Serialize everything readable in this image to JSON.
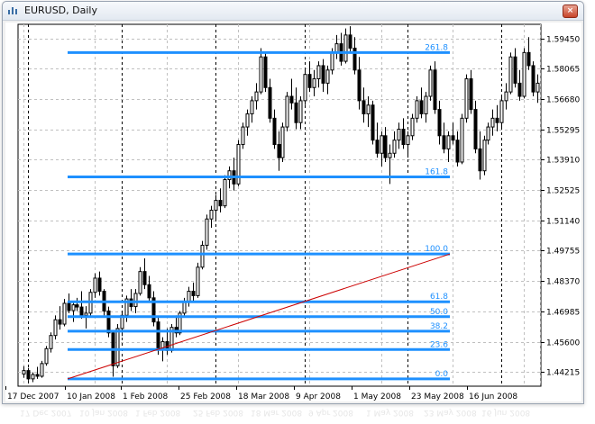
{
  "window": {
    "title": "EURUSD, Daily",
    "close_label": "×"
  },
  "chart_data": {
    "type": "candlestick",
    "symbol": "EURUSD",
    "timeframe": "Daily",
    "ylim": [
      1.43566,
      1.60088
    ],
    "y_ticks": [
      "1.59450",
      "1.58065",
      "1.56680",
      "1.55295",
      "1.53910",
      "1.52525",
      "1.51140",
      "1.49755",
      "1.48370",
      "1.46985",
      "1.45600",
      "1.44215"
    ],
    "x_ticks": [
      "17 Dec 2007",
      "10 Jan 2008",
      "1 Feb 2008",
      "25 Feb 2008",
      "18 Mar 2008",
      "9 Apr 2008",
      "1 May 2008",
      "23 May 2008",
      "16 Jun 2008"
    ],
    "grid": true,
    "period_separators": "dotted vertical black lines",
    "colors": {
      "bull": "#ffffff",
      "bear": "#000000",
      "fibo": "#1e90ff",
      "trendline": "#cc0000",
      "grid": "#c0c0c0"
    },
    "fibonacci_levels": [
      {
        "label": "0.0",
        "value": 1.439
      },
      {
        "label": "23.6",
        "value": 1.4524
      },
      {
        "label": "38.2",
        "value": 1.4608
      },
      {
        "label": "50.0",
        "value": 1.4674
      },
      {
        "label": "61.8",
        "value": 1.4742
      },
      {
        "label": "100.0",
        "value": 1.496
      },
      {
        "label": "161.8",
        "value": 1.5312
      },
      {
        "label": "261.8",
        "value": 1.588
      }
    ],
    "ohlc": [
      [
        1.4412,
        1.4448,
        1.4395,
        1.4428
      ],
      [
        1.4428,
        1.444,
        1.4382,
        1.439
      ],
      [
        1.439,
        1.442,
        1.4375,
        1.441
      ],
      [
        1.441,
        1.4445,
        1.439,
        1.4402
      ],
      [
        1.4402,
        1.4472,
        1.4395,
        1.446
      ],
      [
        1.446,
        1.454,
        1.445,
        1.4528
      ],
      [
        1.4528,
        1.4602,
        1.451,
        1.4588
      ],
      [
        1.4588,
        1.468,
        1.457,
        1.466
      ],
      [
        1.466,
        1.4722,
        1.4615,
        1.464
      ],
      [
        1.464,
        1.4755,
        1.463,
        1.4735
      ],
      [
        1.4735,
        1.478,
        1.469,
        1.4702
      ],
      [
        1.4702,
        1.4745,
        1.465,
        1.4728
      ],
      [
        1.4728,
        1.476,
        1.47,
        1.4718
      ],
      [
        1.4718,
        1.479,
        1.4665,
        1.468
      ],
      [
        1.468,
        1.4722,
        1.462,
        1.469
      ],
      [
        1.469,
        1.48,
        1.4675,
        1.4785
      ],
      [
        1.4785,
        1.4872,
        1.476,
        1.485
      ],
      [
        1.485,
        1.488,
        1.477,
        1.479
      ],
      [
        1.479,
        1.48,
        1.468,
        1.47
      ],
      [
        1.47,
        1.472,
        1.458,
        1.46
      ],
      [
        1.46,
        1.4612,
        1.44,
        1.445
      ],
      [
        1.445,
        1.464,
        1.444,
        1.462
      ],
      [
        1.462,
        1.47,
        1.4585,
        1.468
      ],
      [
        1.468,
        1.477,
        1.465,
        1.4755
      ],
      [
        1.4755,
        1.48,
        1.47,
        1.472
      ],
      [
        1.472,
        1.48,
        1.469,
        1.478
      ],
      [
        1.478,
        1.49,
        1.477,
        1.488
      ],
      [
        1.488,
        1.494,
        1.48,
        1.482
      ],
      [
        1.482,
        1.486,
        1.474,
        1.476
      ],
      [
        1.476,
        1.479,
        1.463,
        1.465
      ],
      [
        1.465,
        1.467,
        1.45,
        1.453
      ],
      [
        1.453,
        1.458,
        1.447,
        1.456
      ],
      [
        1.456,
        1.462,
        1.45,
        1.452
      ],
      [
        1.452,
        1.464,
        1.451,
        1.4625
      ],
      [
        1.4625,
        1.468,
        1.458,
        1.46
      ],
      [
        1.46,
        1.47,
        1.459,
        1.469
      ],
      [
        1.469,
        1.476,
        1.467,
        1.474
      ],
      [
        1.474,
        1.481,
        1.472,
        1.479
      ],
      [
        1.479,
        1.483,
        1.474,
        1.477
      ],
      [
        1.477,
        1.492,
        1.476,
        1.49
      ],
      [
        1.49,
        1.502,
        1.489,
        1.5
      ],
      [
        1.5,
        1.514,
        1.498,
        1.512
      ],
      [
        1.512,
        1.518,
        1.508,
        1.516
      ],
      [
        1.516,
        1.523,
        1.512,
        1.5205
      ],
      [
        1.5205,
        1.526,
        1.515,
        1.518
      ],
      [
        1.518,
        1.532,
        1.517,
        1.53
      ],
      [
        1.53,
        1.536,
        1.526,
        1.534
      ],
      [
        1.534,
        1.54,
        1.525,
        1.528
      ],
      [
        1.528,
        1.548,
        1.527,
        1.546
      ],
      [
        1.546,
        1.556,
        1.544,
        1.554
      ],
      [
        1.554,
        1.562,
        1.55,
        1.56
      ],
      [
        1.56,
        1.568,
        1.556,
        1.566
      ],
      [
        1.566,
        1.574,
        1.562,
        1.57
      ],
      [
        1.57,
        1.59,
        1.569,
        1.586
      ],
      [
        1.586,
        1.588,
        1.57,
        1.572
      ],
      [
        1.572,
        1.576,
        1.556,
        1.558
      ],
      [
        1.558,
        1.562,
        1.544,
        1.546
      ],
      [
        1.546,
        1.552,
        1.534,
        1.54
      ],
      [
        1.54,
        1.556,
        1.538,
        1.554
      ],
      [
        1.554,
        1.57,
        1.552,
        1.568
      ],
      [
        1.568,
        1.576,
        1.562,
        1.565
      ],
      [
        1.565,
        1.572,
        1.553,
        1.556
      ],
      [
        1.556,
        1.568,
        1.553,
        1.566
      ],
      [
        1.566,
        1.58,
        1.564,
        1.578
      ],
      [
        1.578,
        1.584,
        1.57,
        1.572
      ],
      [
        1.572,
        1.58,
        1.568,
        1.576
      ],
      [
        1.576,
        1.584,
        1.572,
        1.582
      ],
      [
        1.582,
        1.585,
        1.57,
        1.574
      ],
      [
        1.574,
        1.582,
        1.569,
        1.58
      ],
      [
        1.58,
        1.59,
        1.578,
        1.588
      ],
      [
        1.588,
        1.596,
        1.585,
        1.592
      ],
      [
        1.592,
        1.597,
        1.582,
        1.584
      ],
      [
        1.584,
        1.599,
        1.583,
        1.596
      ],
      [
        1.596,
        1.6,
        1.588,
        1.59
      ],
      [
        1.59,
        1.595,
        1.578,
        1.58
      ],
      [
        1.58,
        1.586,
        1.562,
        1.566
      ],
      [
        1.566,
        1.572,
        1.556,
        1.56
      ],
      [
        1.56,
        1.568,
        1.554,
        1.564
      ],
      [
        1.564,
        1.566,
        1.546,
        1.548
      ],
      [
        1.548,
        1.556,
        1.54,
        1.542
      ],
      [
        1.542,
        1.552,
        1.536,
        1.55
      ],
      [
        1.55,
        1.554,
        1.538,
        1.54
      ],
      [
        1.54,
        1.546,
        1.528,
        1.542
      ],
      [
        1.542,
        1.552,
        1.54,
        1.548
      ],
      [
        1.548,
        1.556,
        1.544,
        1.553
      ],
      [
        1.553,
        1.558,
        1.544,
        1.546
      ],
      [
        1.546,
        1.552,
        1.54,
        1.55
      ],
      [
        1.55,
        1.56,
        1.548,
        1.558
      ],
      [
        1.558,
        1.568,
        1.556,
        1.566
      ],
      [
        1.566,
        1.572,
        1.558,
        1.56
      ],
      [
        1.56,
        1.57,
        1.556,
        1.568
      ],
      [
        1.568,
        1.582,
        1.566,
        1.58
      ],
      [
        1.58,
        1.584,
        1.56,
        1.562
      ],
      [
        1.562,
        1.566,
        1.546,
        1.55
      ],
      [
        1.55,
        1.556,
        1.542,
        1.544
      ],
      [
        1.544,
        1.552,
        1.538,
        1.55
      ],
      [
        1.55,
        1.556,
        1.546,
        1.548
      ],
      [
        1.548,
        1.552,
        1.536,
        1.538
      ],
      [
        1.538,
        1.56,
        1.537,
        1.558
      ],
      [
        1.558,
        1.578,
        1.556,
        1.576
      ],
      [
        1.576,
        1.58,
        1.56,
        1.562
      ],
      [
        1.562,
        1.566,
        1.542,
        1.544
      ],
      [
        1.544,
        1.552,
        1.53,
        1.534
      ],
      [
        1.534,
        1.55,
        1.532,
        1.548
      ],
      [
        1.548,
        1.556,
        1.546,
        1.554
      ],
      [
        1.554,
        1.562,
        1.55,
        1.558
      ],
      [
        1.558,
        1.564,
        1.552,
        1.556
      ],
      [
        1.556,
        1.568,
        1.554,
        1.566
      ],
      [
        1.566,
        1.574,
        1.562,
        1.57
      ],
      [
        1.57,
        1.588,
        1.569,
        1.586
      ],
      [
        1.586,
        1.59,
        1.572,
        1.574
      ],
      [
        1.574,
        1.58,
        1.566,
        1.568
      ],
      [
        1.568,
        1.59,
        1.567,
        1.588
      ],
      [
        1.588,
        1.595,
        1.58,
        1.582
      ],
      [
        1.582,
        1.584,
        1.568,
        1.57
      ],
      [
        1.57,
        1.578,
        1.565,
        1.574
      ]
    ]
  }
}
